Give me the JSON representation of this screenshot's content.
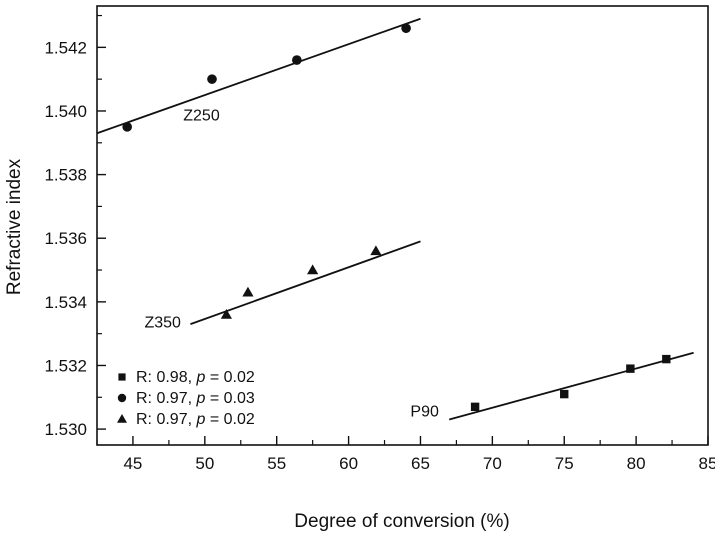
{
  "chart_data": {
    "type": "scatter",
    "xlabel": "Degree of conversion (%)",
    "ylabel": "Refractive index",
    "xlim": [
      42.5,
      85
    ],
    "ylim": [
      1.5295,
      1.5433
    ],
    "x_ticks": [
      45,
      50,
      55,
      60,
      65,
      70,
      75,
      80,
      85
    ],
    "x_tick_labels": [
      "45",
      "50",
      "55",
      "60",
      "65",
      "70",
      "75",
      "80",
      "85"
    ],
    "y_ticks": [
      1.53,
      1.532,
      1.534,
      1.536,
      1.538,
      1.54,
      1.542
    ],
    "y_tick_labels": [
      "1.530",
      "1.532",
      "1.534",
      "1.536",
      "1.538",
      "1.540",
      "1.542"
    ],
    "grid": false,
    "legend_position": "bottom-left",
    "series": [
      {
        "name": "P90",
        "marker": "square",
        "points": [
          [
            68.8,
            1.5307
          ],
          [
            75.0,
            1.5311
          ],
          [
            79.6,
            1.5319
          ],
          [
            82.1,
            1.5322
          ]
        ],
        "fit_line": [
          [
            67,
            1.5303
          ],
          [
            84,
            1.5324
          ]
        ]
      },
      {
        "name": "Z250",
        "marker": "circle",
        "points": [
          [
            44.6,
            1.5395
          ],
          [
            50.5,
            1.541
          ],
          [
            56.4,
            1.5416
          ],
          [
            64.0,
            1.5426
          ]
        ],
        "fit_line": [
          [
            42.5,
            1.5393
          ],
          [
            65,
            1.5429
          ]
        ]
      },
      {
        "name": "Z350",
        "marker": "triangle",
        "points": [
          [
            51.5,
            1.5336
          ],
          [
            53.0,
            1.5343
          ],
          [
            57.5,
            1.535
          ],
          [
            61.9,
            1.5356
          ]
        ],
        "fit_line": [
          [
            49,
            1.5333
          ],
          [
            65,
            1.5359
          ]
        ]
      }
    ],
    "series_labels": [
      {
        "text": "Z250",
        "x": 48.5,
        "y": 1.5397
      },
      {
        "text": "Z350",
        "x": 45.8,
        "y": 1.5332
      },
      {
        "text": "P90",
        "x": 64.3,
        "y": 1.5304
      }
    ],
    "legend": [
      {
        "marker": "square",
        "r": "R: 0.98, ",
        "p": "p",
        "tail": " = 0.02"
      },
      {
        "marker": "circle",
        "r": "R: 0.97, ",
        "p": "p",
        "tail": " = 0.03"
      },
      {
        "marker": "triangle",
        "r": "R: 0.97, ",
        "p": "p",
        "tail": " = 0.02"
      }
    ]
  }
}
